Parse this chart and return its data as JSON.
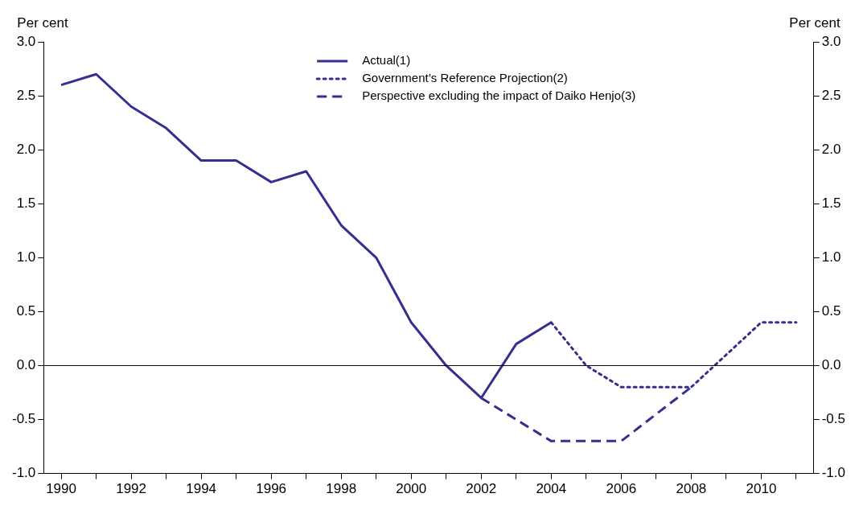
{
  "chart_data": {
    "type": "line",
    "ylabel": "Per cent",
    "y2label": "Per cent",
    "categories": [
      "1990",
      null,
      "1992",
      null,
      "1994",
      null,
      "1996",
      null,
      "1998",
      null,
      "2000",
      null,
      "2002",
      null,
      "2004",
      null,
      "2006",
      null,
      "2008",
      null,
      "2010",
      null
    ],
    "series": [
      {
        "name": "Actual(1)",
        "color": "#33308f",
        "line_style": "solid",
        "values": [
          2.6,
          2.7,
          2.4,
          2.2,
          1.9,
          1.9,
          1.7,
          1.8,
          1.3,
          1.0,
          0.4,
          0.0,
          -0.3,
          0.2,
          0.4,
          null,
          null,
          null,
          null,
          null,
          null,
          null
        ]
      },
      {
        "name": "Government’s Reference Projection(2)",
        "color": "#33308f",
        "line_style": "dotted",
        "values": [
          null,
          null,
          null,
          null,
          null,
          null,
          null,
          null,
          null,
          null,
          null,
          null,
          null,
          null,
          0.4,
          0.0,
          -0.2,
          -0.2,
          -0.2,
          0.1,
          0.4,
          0.4
        ]
      },
      {
        "name": "Perspective excluding the impact of Daiko Henjo(3)",
        "color": "#33308f",
        "line_style": "dashed",
        "values": [
          null,
          null,
          null,
          null,
          null,
          null,
          null,
          null,
          null,
          null,
          null,
          null,
          -0.3,
          -0.5,
          -0.7,
          -0.7,
          -0.7,
          -0.45,
          -0.2,
          null,
          null,
          null
        ]
      }
    ],
    "ylim": [
      -1.0,
      3.0
    ],
    "yticks": [
      {
        "value": -1,
        "label": "-1.0"
      },
      {
        "value": -0.5,
        "label": "-0.5"
      },
      {
        "value": 0,
        "label": "0.0"
      },
      {
        "value": 0.5,
        "label": "0.5"
      },
      {
        "value": 1,
        "label": "1.0"
      },
      {
        "value": 1.5,
        "label": "1.5"
      },
      {
        "value": 2,
        "label": "2.0"
      },
      {
        "value": 2.5,
        "label": "2.5"
      },
      {
        "value": 3,
        "label": "3.0"
      }
    ],
    "y2lim": [
      -1.0,
      3.0
    ],
    "y2ticks": [
      {
        "value": -1,
        "label": "-1.0"
      },
      {
        "value": -0.5,
        "label": "-0.5"
      },
      {
        "value": 0,
        "label": "0.0"
      },
      {
        "value": 0.5,
        "label": "0.5"
      },
      {
        "value": 1,
        "label": "1.0"
      },
      {
        "value": 1.5,
        "label": "1.5"
      },
      {
        "value": 2,
        "label": "2.0"
      },
      {
        "value": 2.5,
        "label": "2.5"
      },
      {
        "value": 3,
        "label": "3.0"
      }
    ],
    "ref_lines": [
      {
        "axis": "y",
        "value": 0,
        "color": "#000000"
      }
    ],
    "grid": false,
    "legend": "top",
    "marker": "none"
  }
}
